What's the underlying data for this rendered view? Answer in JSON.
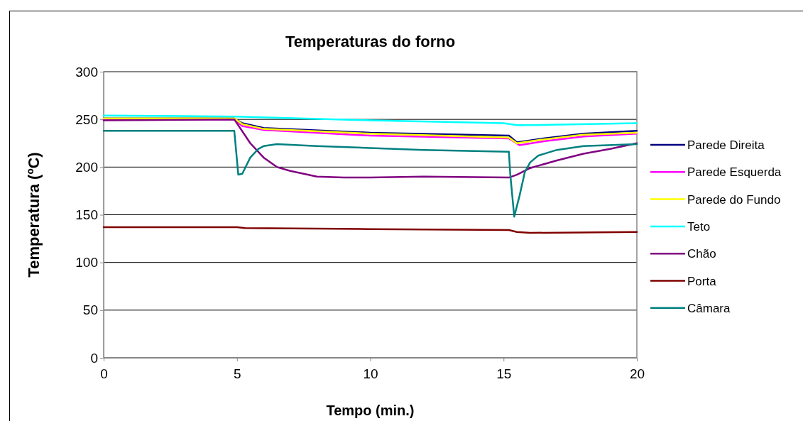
{
  "chart_data": {
    "type": "line",
    "title": "Temperaturas do forno",
    "xlabel": "Tempo (min.)",
    "ylabel": "Temperatura (ºC)",
    "xlim": [
      0,
      20
    ],
    "xticks": [
      0,
      5,
      10,
      15,
      20
    ],
    "ylim": [
      0,
      300
    ],
    "yticks": [
      0,
      50,
      100,
      150,
      200,
      250,
      300
    ],
    "grid": "y",
    "legend": "right",
    "marker": "none",
    "line_style": "solid",
    "series": [
      {
        "name": "Parede Direita",
        "color": "#000080",
        "x": [
          0,
          4.9,
          5.2,
          6,
          10,
          15.2,
          15.5,
          16.5,
          18,
          20
        ],
        "values": [
          251,
          251,
          246,
          241,
          236,
          233,
          226,
          230,
          235,
          238
        ]
      },
      {
        "name": "Parede Esquerda",
        "color": "#ff00ff",
        "x": [
          0,
          4.9,
          5.2,
          6,
          10,
          15.2,
          15.6,
          16.5,
          18,
          20
        ],
        "values": [
          250,
          250,
          243,
          239,
          233,
          230,
          223,
          227,
          232,
          235
        ]
      },
      {
        "name": "Parede do Fundo",
        "color": "#ffff00",
        "x": [
          0,
          4.9,
          5.2,
          6,
          10,
          15.2,
          15.5,
          16.5,
          18,
          20
        ],
        "values": [
          251,
          251,
          245,
          240,
          235,
          231,
          225,
          229,
          234,
          236
        ]
      },
      {
        "name": "Teto",
        "color": "#00ffff",
        "x": [
          0,
          5,
          10,
          15,
          15.5,
          16,
          20
        ],
        "values": [
          254,
          253,
          249,
          246,
          244,
          244,
          246
        ]
      },
      {
        "name": "Chão",
        "color": "#800080",
        "x": [
          0,
          4.9,
          5.5,
          6,
          6.5,
          7,
          8,
          9,
          10,
          12,
          15.2,
          15.5,
          16,
          17,
          18,
          19,
          20
        ],
        "values": [
          249,
          250,
          225,
          210,
          200,
          196,
          190,
          189,
          189,
          190,
          189,
          192,
          199,
          207,
          214,
          219,
          225
        ]
      },
      {
        "name": "Porta",
        "color": "#800000",
        "x": [
          0,
          5,
          5.3,
          10,
          15.2,
          15.5,
          16,
          20
        ],
        "values": [
          137,
          137,
          136,
          135,
          134,
          132,
          131,
          132
        ]
      },
      {
        "name": "Câmara",
        "color": "#008080",
        "x": [
          0,
          4.9,
          5.05,
          5.2,
          5.5,
          5.8,
          6,
          6.5,
          8,
          10,
          12,
          15.2,
          15.25,
          15.4,
          15.6,
          15.8,
          16,
          16.3,
          17,
          18,
          20
        ],
        "values": [
          238,
          238,
          192,
          193,
          210,
          219,
          222,
          224,
          222,
          220,
          218,
          216,
          193,
          148,
          170,
          195,
          205,
          212,
          218,
          222,
          224
        ]
      }
    ]
  }
}
